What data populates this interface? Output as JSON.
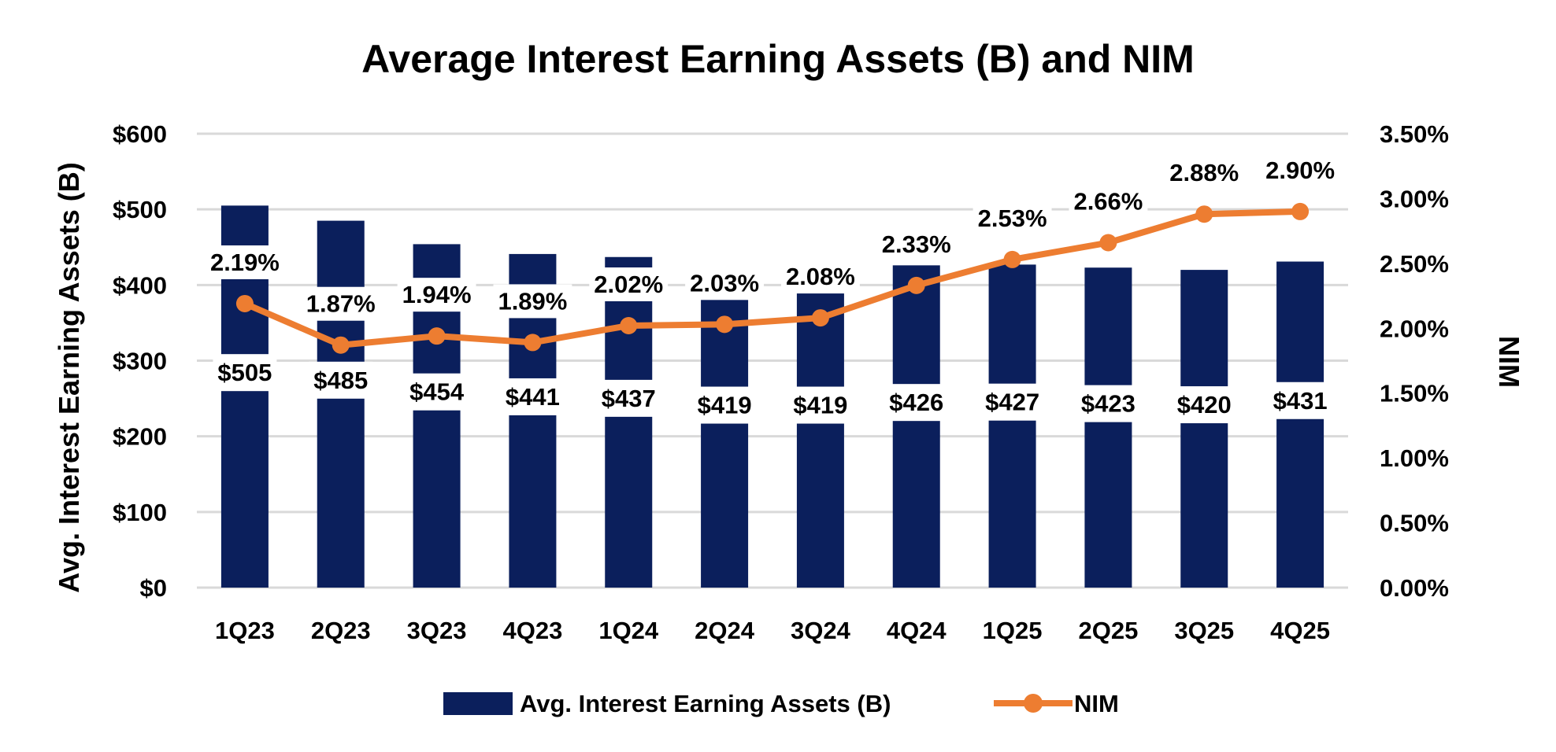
{
  "chart_data": {
    "type": "bar",
    "title": "Average Interest Earning Assets (B) and NIM",
    "categories": [
      "1Q23",
      "2Q23",
      "3Q23",
      "4Q23",
      "1Q24",
      "2Q24",
      "3Q24",
      "4Q24",
      "1Q25",
      "2Q25",
      "3Q25",
      "4Q25"
    ],
    "series": [
      {
        "name": "Avg. Interest Earning Assets (B)",
        "type": "bar",
        "axis": "left",
        "color": "#0b1f5c",
        "values": [
          505,
          485,
          454,
          441,
          437,
          419,
          419,
          426,
          427,
          423,
          420,
          431
        ],
        "labels": [
          "$505",
          "$485",
          "$454",
          "$441",
          "$437",
          "$419",
          "$419",
          "$426",
          "$427",
          "$423",
          "$420",
          "$431"
        ]
      },
      {
        "name": "NIM",
        "type": "line",
        "axis": "right",
        "color": "#ed7d31",
        "values": [
          2.19,
          1.87,
          1.94,
          1.89,
          2.02,
          2.03,
          2.08,
          2.33,
          2.53,
          2.66,
          2.88,
          2.9
        ],
        "labels": [
          "2.19%",
          "1.87%",
          "1.94%",
          "1.89%",
          "2.02%",
          "2.03%",
          "2.08%",
          "2.33%",
          "2.53%",
          "2.66%",
          "2.88%",
          "2.90%"
        ]
      }
    ],
    "ylabel": "Avg. Interest Earning Assets (B)",
    "y2label": "NIM",
    "ylim": [
      0,
      600
    ],
    "y2lim": [
      0,
      3.5
    ],
    "yticks": [
      "$0",
      "$100",
      "$200",
      "$300",
      "$400",
      "$500",
      "$600"
    ],
    "y2ticks": [
      "0.00%",
      "0.50%",
      "1.00%",
      "1.50%",
      "2.00%",
      "2.50%",
      "3.00%",
      "3.50%"
    ],
    "grid": true,
    "legend": "bottom"
  }
}
